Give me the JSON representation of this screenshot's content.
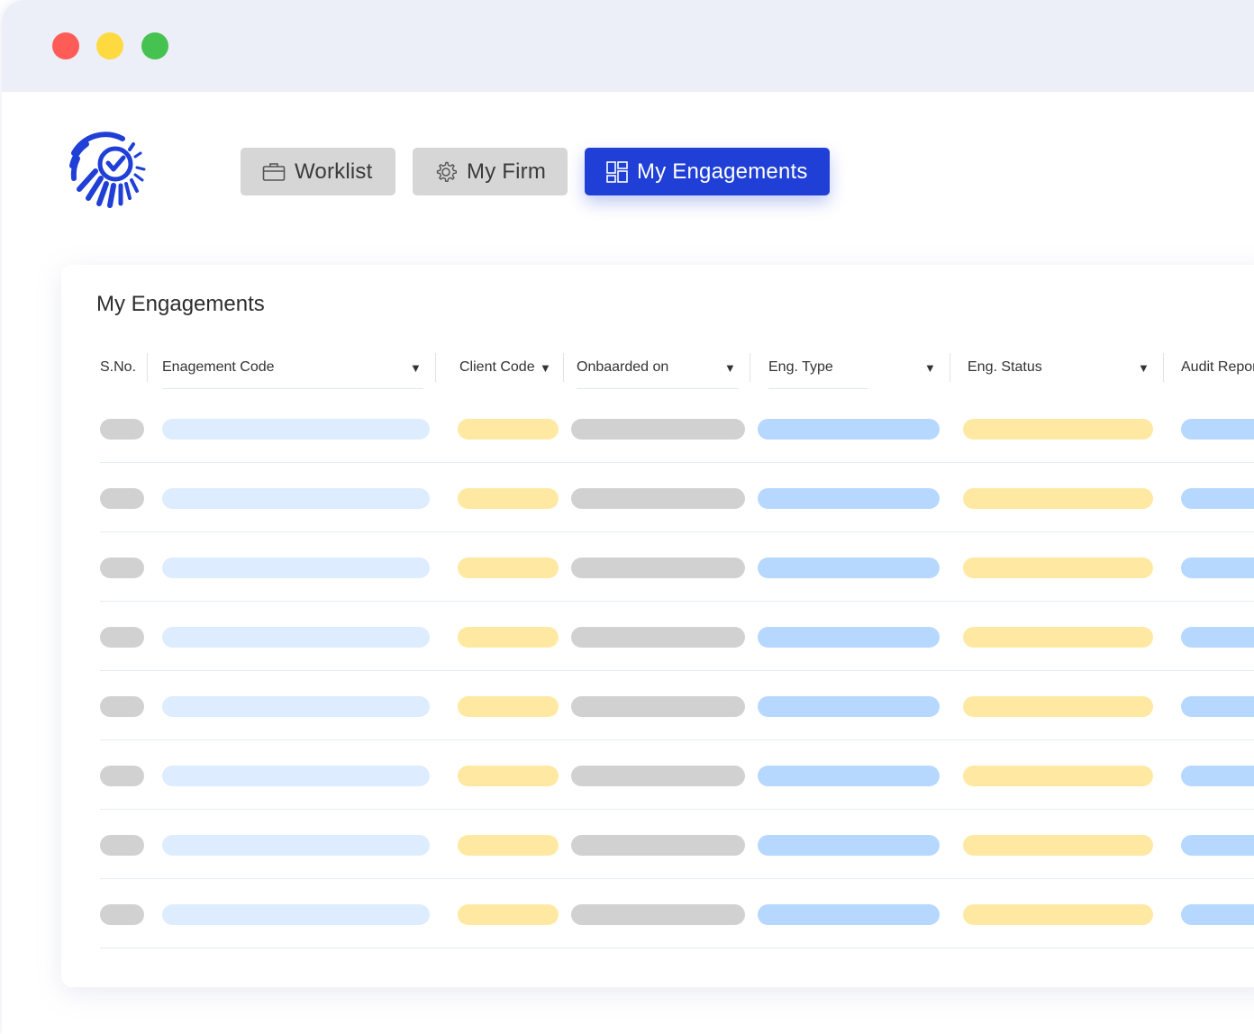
{
  "colors": {
    "active_button": "#1f3fd6",
    "inactive_button": "#d6d6d6",
    "titlebar": "#eceef8",
    "traffic_red": "#ff5c57",
    "traffic_yellow": "#ffd940",
    "traffic_green": "#46c250"
  },
  "nav": {
    "worklist": {
      "label": "Worklist",
      "icon": "briefcase-icon"
    },
    "my_firm": {
      "label": "My Firm",
      "icon": "gear-icon"
    },
    "my_engagements": {
      "label": "My Engagements",
      "icon": "dashboard-grid-icon"
    }
  },
  "main": {
    "title": "My Engagements",
    "columns": [
      {
        "label": "S.No.",
        "sortable": false
      },
      {
        "label": "Enagement Code",
        "sortable": true
      },
      {
        "label": "Client Code",
        "sortable": true
      },
      {
        "label": "Onbaarded on",
        "sortable": true
      },
      {
        "label": "Eng. Type",
        "sortable": true
      },
      {
        "label": "Eng. Status",
        "sortable": true
      },
      {
        "label": "Audit Repor",
        "sortable": false
      }
    ],
    "caret": "▼",
    "rows_placeholder_count": 8
  }
}
